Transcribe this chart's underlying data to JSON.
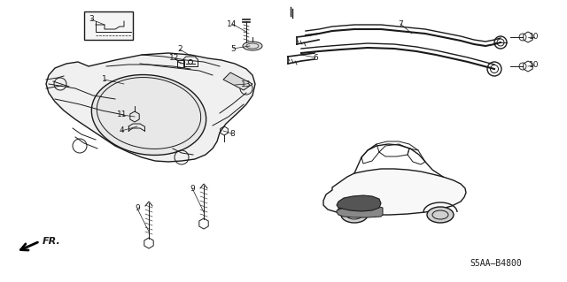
{
  "background_color": "#ffffff",
  "fig_width": 6.4,
  "fig_height": 3.19,
  "dpi": 100,
  "diagram_code": "S5AA–B4800",
  "line_color": "#1a1a1a",
  "text_color": "#1a1a1a",
  "fr_label": "FR.",
  "label_fontsize": 6.5,
  "code_fontsize": 7
}
